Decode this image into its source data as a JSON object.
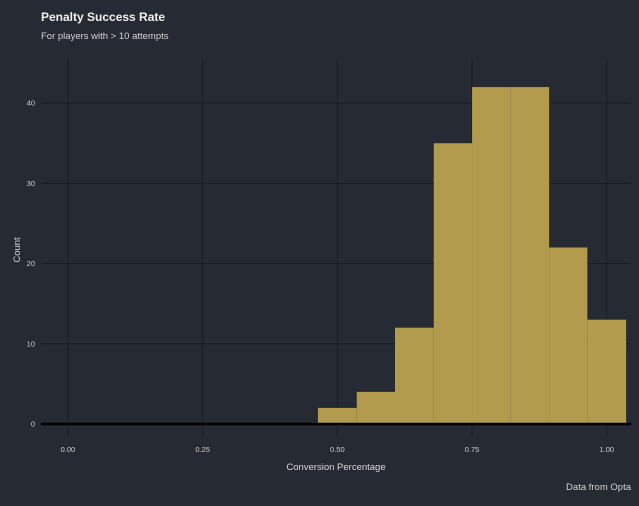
{
  "chart_data": {
    "type": "bar",
    "title": "Penalty Success Rate",
    "subtitle": "For players with > 10 attempts",
    "caption": "Data from Opta",
    "xlabel": "Conversion Percentage",
    "ylabel": "Count",
    "xlim": [
      -0.05,
      1.045
    ],
    "ylim": [
      -1.5,
      45.5
    ],
    "x_ticks": [
      {
        "value": 0.0,
        "label": "0.00"
      },
      {
        "value": 0.25,
        "label": "0.25"
      },
      {
        "value": 0.5,
        "label": "0.50"
      },
      {
        "value": 0.75,
        "label": "0.75"
      },
      {
        "value": 1.0,
        "label": "1.00"
      }
    ],
    "y_ticks": [
      {
        "value": 0,
        "label": "0"
      },
      {
        "value": 10,
        "label": "10"
      },
      {
        "value": 20,
        "label": "20"
      },
      {
        "value": 30,
        "label": "30"
      },
      {
        "value": 40,
        "label": "40"
      }
    ],
    "bins": [
      {
        "x0": 0.464,
        "x1": 0.536,
        "count": 2
      },
      {
        "x0": 0.536,
        "x1": 0.607,
        "count": 4
      },
      {
        "x0": 0.607,
        "x1": 0.679,
        "count": 12
      },
      {
        "x0": 0.679,
        "x1": 0.75,
        "count": 35
      },
      {
        "x0": 0.75,
        "x1": 0.821,
        "count": 42
      },
      {
        "x0": 0.821,
        "x1": 0.893,
        "count": 42
      },
      {
        "x0": 0.893,
        "x1": 0.964,
        "count": 22
      },
      {
        "x0": 0.964,
        "x1": 1.036,
        "count": 13
      }
    ],
    "grid": true,
    "colors": {
      "bar": "#b39b4e",
      "background": "#262a33",
      "grid": "#1a1d24",
      "baseline": "#000000"
    }
  }
}
